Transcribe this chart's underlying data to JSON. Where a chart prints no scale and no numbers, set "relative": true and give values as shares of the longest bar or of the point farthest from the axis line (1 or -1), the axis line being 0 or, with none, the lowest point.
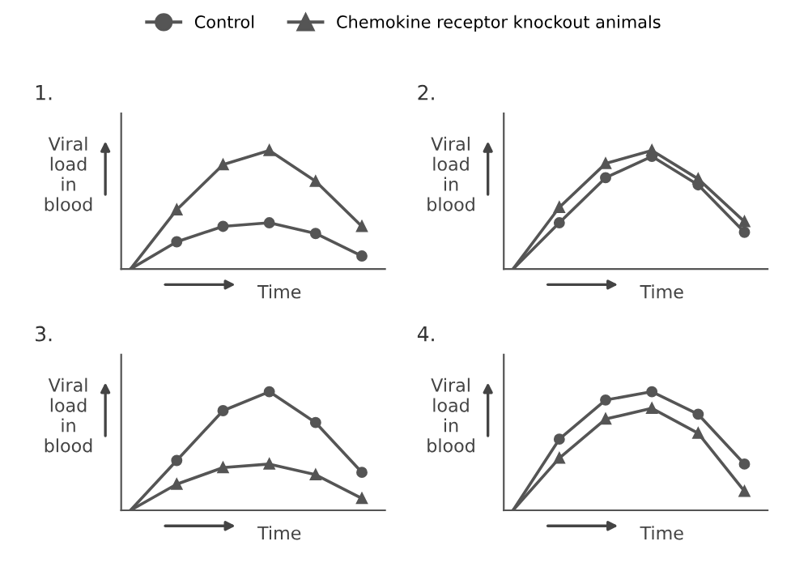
{
  "chart_data": [
    {
      "type": "line",
      "title": "1.",
      "ylabel": "Viral\nload\nin\nblood",
      "xlabel": "Time",
      "relative": true,
      "tick_labels": false,
      "legend": "top",
      "categories": [
        null,
        null,
        null,
        null,
        null,
        null
      ],
      "series": [
        {
          "name": "Control",
          "color": "#555555",
          "marker": "circle",
          "values": [
            0,
            0.23,
            0.36,
            0.39,
            0.3,
            0.11
          ]
        },
        {
          "name": "Chemokine receptor knockout animals",
          "color": "#555555",
          "marker": "triangle",
          "values": [
            0,
            0.5,
            0.88,
            1,
            0.74,
            0.36
          ]
        }
      ]
    },
    {
      "type": "line",
      "title": "2.",
      "ylabel": "Viral\nload\nin\nblood",
      "xlabel": "Time",
      "relative": true,
      "tick_labels": false,
      "categories": [
        null,
        null,
        null,
        null,
        null,
        null
      ],
      "series": [
        {
          "name": "Control",
          "color": "#555555",
          "marker": "circle",
          "values": [
            0,
            0.39,
            0.77,
            0.95,
            0.71,
            0.31
          ]
        },
        {
          "name": "Chemokine receptor knockout animals",
          "color": "#555555",
          "marker": "triangle",
          "values": [
            0,
            0.52,
            0.89,
            1,
            0.76,
            0.4
          ]
        }
      ]
    },
    {
      "type": "line",
      "title": "3.",
      "ylabel": "Viral\nload\nin\nblood",
      "xlabel": "Time",
      "relative": true,
      "tick_labels": false,
      "categories": [
        null,
        null,
        null,
        null,
        null,
        null
      ],
      "series": [
        {
          "name": "Control",
          "color": "#555555",
          "marker": "circle",
          "values": [
            0,
            0.42,
            0.84,
            1,
            0.74,
            0.32
          ]
        },
        {
          "name": "Chemokine receptor knockout animals",
          "color": "#555555",
          "marker": "triangle",
          "values": [
            0,
            0.22,
            0.36,
            0.39,
            0.3,
            0.1
          ]
        }
      ]
    },
    {
      "type": "line",
      "title": "4.",
      "ylabel": "Viral\nload\nin\nblood",
      "xlabel": "Time",
      "relative": true,
      "tick_labels": false,
      "categories": [
        null,
        null,
        null,
        null,
        null,
        null
      ],
      "series": [
        {
          "name": "Control",
          "color": "#555555",
          "marker": "circle",
          "values": [
            0,
            0.6,
            0.93,
            1,
            0.81,
            0.39
          ]
        },
        {
          "name": "Chemokine receptor knockout animals",
          "color": "#555555",
          "marker": "triangle",
          "values": [
            0,
            0.44,
            0.77,
            0.86,
            0.65,
            0.16
          ]
        }
      ]
    }
  ]
}
